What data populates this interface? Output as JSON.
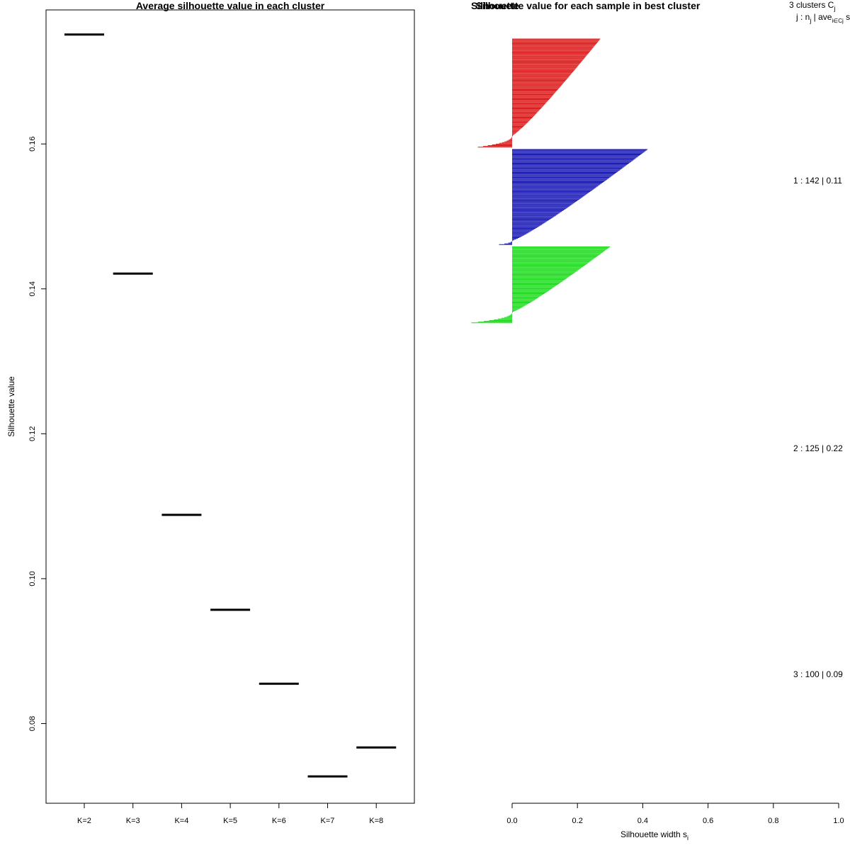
{
  "chart_data": [
    {
      "type": "scatter",
      "title": "Average silhouette value in each cluster",
      "xlabel": "",
      "ylabel": "Silhouette value",
      "categories": [
        "K=2",
        "K=3",
        "K=4",
        "K=5",
        "K=6",
        "K=7",
        "K=8"
      ],
      "values": [
        0.1751,
        0.1421,
        0.1088,
        0.0957,
        0.0855,
        0.0727,
        0.0767
      ],
      "ylim": [
        0.069,
        0.1785
      ],
      "yticks": [
        "0.08",
        "0.10",
        "0.12",
        "0.14",
        "0.16"
      ],
      "grid": false
    },
    {
      "type": "bar",
      "orientation": "horizontal",
      "title": "Silhouette value for each sample in best cluster",
      "overlapped_title_text": "Silhouette",
      "xlabel": "Silhouette width s",
      "xlabel_subscript": "i",
      "xlim": [
        0.0,
        1.0
      ],
      "xticks": [
        "0.0",
        "0.2",
        "0.4",
        "0.6",
        "0.8",
        "1.0"
      ],
      "legend_header_line1": "3  clusters  C",
      "legend_header_line1_sub": "j",
      "legend_header_line2": "j :  n",
      "legend_header_line2_sub": "j",
      "legend_header_line2_rest": " | ave",
      "legend_header_line2_sub2": "i∈Cj",
      "legend_header_line2_tail": "  s",
      "series": [
        {
          "name": "1 :  142  |  0.11",
          "cluster": 1,
          "n": 142,
          "avg_width": 0.11,
          "color": "#dd1f1f",
          "max_width": 0.27,
          "min_width": -0.105,
          "positive_count": 127
        },
        {
          "name": "2 :  125  |  0.22",
          "cluster": 2,
          "n": 125,
          "avg_width": 0.22,
          "color": "#1f1fb8",
          "max_width": 0.415,
          "min_width": -0.04,
          "positive_count": 120
        },
        {
          "name": "3 :  100  |  0.09",
          "cluster": 3,
          "n": 100,
          "avg_width": 0.09,
          "color": "#22dd22",
          "max_width": 0.3,
          "min_width": -0.125,
          "positive_count": 86
        }
      ]
    }
  ]
}
